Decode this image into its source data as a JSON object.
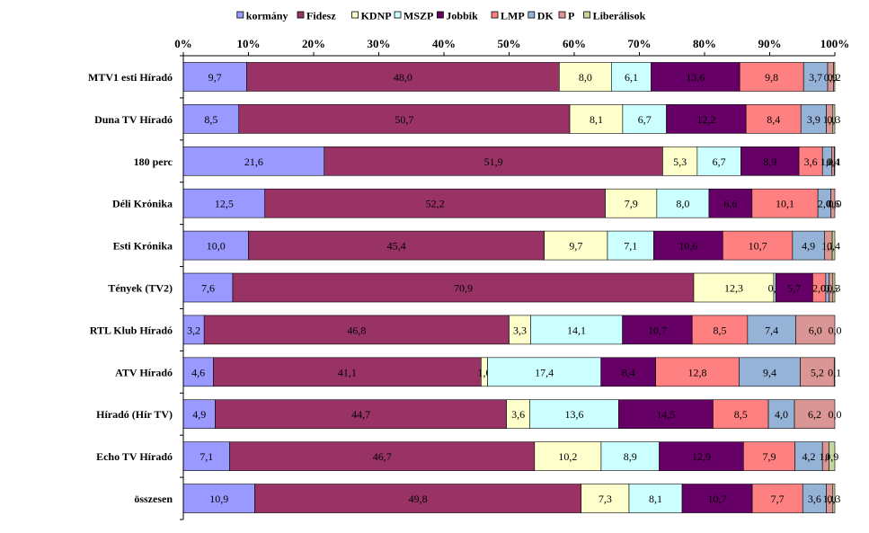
{
  "chart_data": {
    "type": "bar",
    "orientation": "horizontal",
    "stacked": true,
    "percent_stacked": true,
    "legend_position": "top",
    "grid": false,
    "xlim": [
      0,
      100
    ],
    "x_tick_labels": [
      "0%",
      "10%",
      "20%",
      "30%",
      "40%",
      "50%",
      "60%",
      "70%",
      "80%",
      "90%",
      "100%"
    ],
    "categories": [
      "MTV1 esti Híradó",
      "Duna TV Híradó",
      "180 perc",
      "Déli Krónika",
      "Esti Krónika",
      "Tények (TV2)",
      "RTL Klub Híradó",
      "ATV Híradó",
      "Híradó (Hír TV)",
      "Echo TV Híradó",
      "összesen"
    ],
    "series": [
      {
        "name": "kormány",
        "color": "#9999ff",
        "values": [
          9.7,
          8.5,
          21.6,
          12.5,
          10.0,
          7.6,
          3.2,
          4.6,
          4.9,
          7.1,
          10.9
        ],
        "labels": [
          "9,7",
          "8,5",
          "21,6",
          "12,5",
          "10,0",
          "7,6",
          "3,2",
          "4,6",
          "4,9",
          "7,1",
          "10,9"
        ]
      },
      {
        "name": "Fidesz",
        "color": "#993366",
        "values": [
          48.0,
          50.7,
          51.9,
          52.2,
          45.4,
          70.9,
          46.8,
          41.1,
          44.7,
          46.7,
          49.8
        ],
        "labels": [
          "48,0",
          "50,7",
          "51,9",
          "52,2",
          "45,4",
          "70,9",
          "46,8",
          "41,1",
          "44,7",
          "46,7",
          "49,8"
        ]
      },
      {
        "name": "KDNP",
        "color": "#ffffcc",
        "values": [
          8.0,
          8.1,
          5.3,
          7.9,
          9.7,
          12.3,
          3.3,
          1.0,
          3.6,
          10.2,
          7.3
        ],
        "labels": [
          "8,0",
          "8,1",
          "5,3",
          "7,9",
          "9,7",
          "12,3",
          "3,3",
          "1,0",
          "3,6",
          "10,2",
          "7,3"
        ]
      },
      {
        "name": "MSZP",
        "color": "#ccffff",
        "values": [
          6.1,
          6.7,
          6.7,
          8.0,
          7.1,
          0.3,
          14.1,
          17.4,
          13.6,
          8.9,
          8.1
        ],
        "labels": [
          "6,1",
          "6,7",
          "6,7",
          "8,0",
          "7,1",
          "0,3",
          "14,1",
          "17,4",
          "13,6",
          "8,9",
          "8,1"
        ]
      },
      {
        "name": "Jobbik",
        "color": "#660066",
        "values": [
          13.6,
          12.2,
          8.9,
          6.6,
          10.6,
          5.7,
          10.7,
          8.4,
          14.5,
          12.9,
          10.7
        ],
        "labels": [
          "13,6",
          "12,2",
          "8,9",
          "6,6",
          "10,6",
          "5,7",
          "10,7",
          "8,4",
          "14,5",
          "12,9",
          "10,7"
        ]
      },
      {
        "name": "LMP",
        "color": "#ff8080",
        "values": [
          9.8,
          8.4,
          3.6,
          10.1,
          10.7,
          2.0,
          8.5,
          12.8,
          8.5,
          7.9,
          7.7
        ],
        "labels": [
          "9,8",
          "8,4",
          "3,6",
          "10,1",
          "10,7",
          "2,0",
          "8,5",
          "12,8",
          "8,5",
          "7,9",
          "7,7"
        ]
      },
      {
        "name": "DK",
        "color": "#95b3d7",
        "values": [
          3.7,
          3.9,
          1.4,
          2.0,
          4.9,
          0.5,
          7.4,
          9.4,
          4.0,
          4.2,
          3.6
        ],
        "labels": [
          "3,7",
          "3,9",
          "1,4",
          "2,0",
          "4,9",
          "0,5",
          "7,4",
          "9,4",
          "4,0",
          "4,2",
          "3,6"
        ]
      },
      {
        "name": "P",
        "color": "#d99694",
        "values": [
          0.9,
          1.0,
          0.4,
          0.6,
          1.2,
          0.6,
          6.0,
          5.2,
          6.2,
          1.0,
          1.0
        ],
        "labels": [
          "0,9",
          "1,0",
          "0,4",
          "0,6",
          "1,2",
          "0,6",
          "6,0",
          "5,2",
          "6,2",
          "1,0",
          "1,0"
        ]
      },
      {
        "name": "Liberálisok",
        "color": "#c3d69b",
        "values": [
          0.2,
          0.3,
          0.1,
          0.0,
          0.4,
          0.3,
          0.0,
          0.1,
          0.0,
          0.9,
          0.3
        ],
        "labels": [
          "0,2",
          "0,3",
          "0,1",
          "0,0",
          "0,4",
          "0,3",
          "0,0",
          "0,1",
          "0,0",
          "0,9",
          "0,3"
        ]
      }
    ]
  }
}
